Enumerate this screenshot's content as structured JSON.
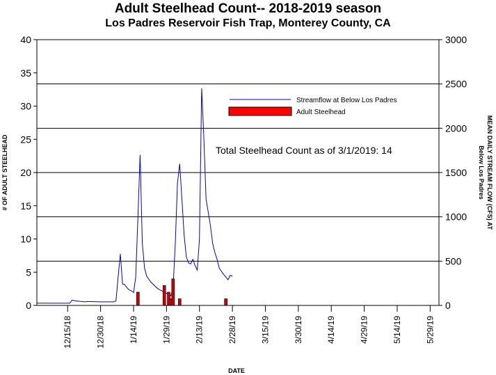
{
  "chart_data": {
    "type": "bar",
    "title": "Adult Steelhead Count-- 2018-2019 season",
    "subtitle": "Los Padres Reservoir Fish Trap, Monterey County, CA",
    "xlabel": "DATE",
    "ylabel_left": "# OF ADULT STEELHEAD",
    "ylabel_right_line1": "MEAN DAILY STREAM FLOW (CFS) AT",
    "ylabel_right_line2": "Below Los Padres",
    "x_range": [
      "2018-12-01",
      "2019-06-02"
    ],
    "x_ticks": [
      "12/15/18",
      "12/30/18",
      "1/14/19",
      "1/29/19",
      "2/13/19",
      "2/28/19",
      "3/15/19",
      "3/30/19",
      "4/14/19",
      "4/29/19",
      "5/14/19",
      "5/29/19"
    ],
    "x_tick_dates": [
      "2018-12-15",
      "2018-12-30",
      "2019-01-14",
      "2019-01-29",
      "2019-02-13",
      "2019-02-28",
      "2019-03-15",
      "2019-03-30",
      "2019-04-14",
      "2019-04-29",
      "2019-05-14",
      "2019-05-29"
    ],
    "ylim_left": [
      0,
      40
    ],
    "y_ticks_left": [
      "0",
      "5",
      "10",
      "15",
      "20",
      "25",
      "30",
      "35",
      "40"
    ],
    "ylim_right": [
      0,
      3000
    ],
    "y_ticks_right": [
      "0",
      "500",
      "1000",
      "1500",
      "2000",
      "2500",
      "3000"
    ],
    "right_axis_gridlines": true,
    "legend_position": "top-right",
    "annotation": "Total Steelhead Count as of 3/1/2019: 14",
    "series": [
      {
        "name": "Adult Steelhead",
        "type": "bar",
        "axis": "left",
        "color": "#cc0000",
        "points": [
          {
            "date": "2019-01-16",
            "count": 2
          },
          {
            "date": "2019-01-28",
            "count": 3
          },
          {
            "date": "2019-01-30",
            "count": 2
          },
          {
            "date": "2019-01-31",
            "count": 1
          },
          {
            "date": "2019-02-01",
            "count": 4
          },
          {
            "date": "2019-02-04",
            "count": 1
          },
          {
            "date": "2019-02-25",
            "count": 1
          }
        ]
      },
      {
        "name": "Streamflow at Below Los Padres",
        "type": "line",
        "axis": "right",
        "color": "#0000cc",
        "points": [
          {
            "date": "2018-12-01",
            "cfs": 25
          },
          {
            "date": "2018-12-16",
            "cfs": 25
          },
          {
            "date": "2018-12-17",
            "cfs": 60
          },
          {
            "date": "2018-12-19",
            "cfs": 50
          },
          {
            "date": "2018-12-23",
            "cfs": 40
          },
          {
            "date": "2018-12-24",
            "cfs": 45
          },
          {
            "date": "2018-12-30",
            "cfs": 40
          },
          {
            "date": "2019-01-05",
            "cfs": 40
          },
          {
            "date": "2019-01-06",
            "cfs": 50
          },
          {
            "date": "2019-01-07",
            "cfs": 330
          },
          {
            "date": "2019-01-08",
            "cfs": 580
          },
          {
            "date": "2019-01-09",
            "cfs": 240
          },
          {
            "date": "2019-01-10",
            "cfs": 235
          },
          {
            "date": "2019-01-11",
            "cfs": 200
          },
          {
            "date": "2019-01-12",
            "cfs": 175
          },
          {
            "date": "2019-01-13",
            "cfs": 165
          },
          {
            "date": "2019-01-14",
            "cfs": 145
          },
          {
            "date": "2019-01-15",
            "cfs": 320
          },
          {
            "date": "2019-01-16",
            "cfs": 1000
          },
          {
            "date": "2019-01-17",
            "cfs": 1700
          },
          {
            "date": "2019-01-18",
            "cfs": 700
          },
          {
            "date": "2019-01-19",
            "cfs": 420
          },
          {
            "date": "2019-01-20",
            "cfs": 330
          },
          {
            "date": "2019-01-22",
            "cfs": 260
          },
          {
            "date": "2019-01-25",
            "cfs": 190
          },
          {
            "date": "2019-01-28",
            "cfs": 150
          },
          {
            "date": "2019-01-31",
            "cfs": 110
          },
          {
            "date": "2019-02-01",
            "cfs": 200
          },
          {
            "date": "2019-02-02",
            "cfs": 700
          },
          {
            "date": "2019-02-03",
            "cfs": 1380
          },
          {
            "date": "2019-02-04",
            "cfs": 1600
          },
          {
            "date": "2019-02-05",
            "cfs": 1200
          },
          {
            "date": "2019-02-06",
            "cfs": 800
          },
          {
            "date": "2019-02-07",
            "cfs": 550
          },
          {
            "date": "2019-02-08",
            "cfs": 480
          },
          {
            "date": "2019-02-09",
            "cfs": 470
          },
          {
            "date": "2019-02-10",
            "cfs": 520
          },
          {
            "date": "2019-02-11",
            "cfs": 450
          },
          {
            "date": "2019-02-12",
            "cfs": 400
          },
          {
            "date": "2019-02-13",
            "cfs": 750
          },
          {
            "date": "2019-02-14",
            "cfs": 2450
          },
          {
            "date": "2019-02-15",
            "cfs": 1900
          },
          {
            "date": "2019-02-16",
            "cfs": 1200
          },
          {
            "date": "2019-02-17",
            "cfs": 1050
          },
          {
            "date": "2019-02-18",
            "cfs": 900
          },
          {
            "date": "2019-02-19",
            "cfs": 700
          },
          {
            "date": "2019-02-20",
            "cfs": 600
          },
          {
            "date": "2019-02-21",
            "cfs": 520
          },
          {
            "date": "2019-02-22",
            "cfs": 420
          },
          {
            "date": "2019-02-24",
            "cfs": 350
          },
          {
            "date": "2019-02-26",
            "cfs": 290
          },
          {
            "date": "2019-02-27",
            "cfs": 340
          },
          {
            "date": "2019-02-28",
            "cfs": 330
          }
        ]
      }
    ]
  }
}
